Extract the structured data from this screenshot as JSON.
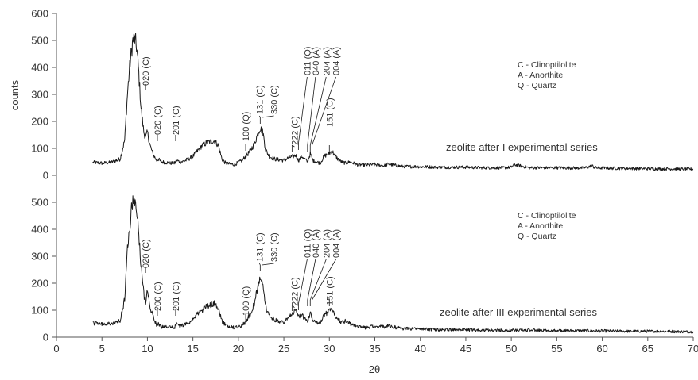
{
  "chart_data": {
    "type": "line",
    "xlabel": "2θ",
    "ylabel": "counts",
    "xlim": [
      0,
      70
    ],
    "xticks": [
      0,
      5,
      10,
      15,
      20,
      25,
      30,
      35,
      40,
      45,
      50,
      55,
      60,
      65,
      70
    ],
    "xtick_labels": [
      "0",
      "5",
      "10",
      "15",
      "20",
      "25",
      "30",
      "35",
      "40",
      "45",
      "50",
      "55",
      "60",
      "65",
      "70"
    ],
    "panels": [
      {
        "id": "top",
        "caption": "zeolite after I experimental series",
        "ylim": [
          0,
          600
        ],
        "yticks": [
          0,
          100,
          200,
          300,
          400,
          500,
          600
        ],
        "ytick_labels": [
          "0",
          "100",
          "200",
          "300",
          "400",
          "500",
          "600"
        ],
        "legend": [
          "C - Clinoptilolite",
          "A - Anorthite",
          "Q - Quartz"
        ],
        "series": [
          {
            "x": [
              4,
              5,
              6,
              7,
              7.5,
              7.8,
              8.1,
              8.4,
              8.6,
              8.8,
              9.0,
              9.3,
              9.6,
              9.8,
              10.0,
              10.3,
              10.6,
              11.0,
              11.2,
              11.5,
              12,
              12.5,
              13.0,
              13.2,
              13.6,
              14,
              14.5,
              15,
              15.5,
              16,
              16.5,
              17,
              17.4,
              17.8,
              18.2,
              18.6,
              19,
              19.6,
              20,
              20.4,
              20.8,
              21.3,
              21.8,
              22.2,
              22.4,
              22.7,
              23,
              23.4,
              24,
              24.5,
              25,
              25.5,
              26,
              26.3,
              26.6,
              27,
              27.3,
              27.6,
              27.9,
              28.2,
              28.6,
              29,
              29.4,
              29.9,
              30.3,
              30.8,
              31.3,
              31.8,
              32.3,
              33,
              34,
              35,
              36,
              36.5,
              37,
              38,
              40,
              42,
              45,
              47,
              49,
              50,
              50.3,
              52,
              55,
              58,
              58.9,
              59.2,
              60,
              62,
              64,
              66,
              68,
              70
            ],
            "y": [
              48,
              45,
              48,
              60,
              130,
              300,
              420,
              500,
              505,
              480,
              400,
              250,
              160,
              140,
              160,
              110,
              80,
              55,
              60,
              50,
              48,
              45,
              45,
              55,
              50,
              52,
              60,
              70,
              90,
              110,
              120,
              125,
              128,
              110,
              60,
              45,
              42,
              40,
              48,
              55,
              70,
              90,
              120,
              160,
              175,
              160,
              95,
              70,
              60,
              58,
              55,
              65,
              70,
              75,
              55,
              70,
              60,
              50,
              80,
              55,
              50,
              45,
              70,
              80,
              90,
              65,
              50,
              45,
              50,
              40,
              38,
              40,
              35,
              42,
              38,
              33,
              32,
              30,
              30,
              28,
              28,
              30,
              40,
              28,
              28,
              27,
              35,
              28,
              27,
              26,
              25,
              24,
              24,
              23
            ]
          }
        ],
        "peak_labels": [
          {
            "x": 9.8,
            "label": "020 (C)"
          },
          {
            "x": 11.1,
            "label": "020 (C)"
          },
          {
            "x": 13.1,
            "label": "201 (C)"
          },
          {
            "x": 20.8,
            "label": "100 (Q)"
          },
          {
            "x": 22.4,
            "label": "131 (C)"
          },
          {
            "x": 22.6,
            "label": "330 (C)"
          },
          {
            "x": 25.9,
            "label": "222 (C)"
          },
          {
            "x": 26.6,
            "label": "011 (Q)"
          },
          {
            "x": 27.6,
            "label": "040 (A)"
          },
          {
            "x": 27.9,
            "label": "204 (A)"
          },
          {
            "x": 28.1,
            "label": "004 (A)"
          },
          {
            "x": 30.0,
            "label": "151 (C)"
          }
        ]
      },
      {
        "id": "bottom",
        "caption": "zeolite after III experimental series",
        "ylim": [
          0,
          500
        ],
        "yticks": [
          0,
          100,
          200,
          300,
          400,
          500
        ],
        "ytick_labels": [
          "0",
          "100",
          "200",
          "300",
          "400",
          "500"
        ],
        "legend": [
          "C - Clinoptilolite",
          "A - Anorthite",
          "Q - Quartz"
        ],
        "series": [
          {
            "x": [
              4,
              5,
              6,
              7,
              7.5,
              7.8,
              8.1,
              8.4,
              8.6,
              8.8,
              9.0,
              9.3,
              9.6,
              9.8,
              10.0,
              10.3,
              10.6,
              11.0,
              11.2,
              11.5,
              12,
              12.5,
              13.0,
              13.2,
              13.6,
              14,
              14.5,
              15,
              15.5,
              16,
              16.5,
              17,
              17.4,
              17.8,
              18.2,
              18.6,
              19,
              19.6,
              20,
              20.4,
              20.8,
              21.3,
              21.8,
              22.2,
              22.4,
              22.7,
              23,
              23.4,
              24,
              24.5,
              25,
              25.5,
              26,
              26.3,
              26.6,
              27,
              27.3,
              27.6,
              27.9,
              28.2,
              28.6,
              29,
              29.4,
              29.9,
              30.3,
              30.8,
              31.3,
              31.8,
              32.3,
              33,
              34,
              35,
              36,
              36.5,
              37,
              38,
              40,
              42,
              45,
              47,
              49,
              50,
              52,
              55,
              58,
              60,
              62,
              64,
              66,
              68,
              70
            ],
            "y": [
              52,
              48,
              50,
              62,
              140,
              320,
              430,
              505,
              510,
              480,
              400,
              260,
              160,
              130,
              180,
              110,
              80,
              45,
              48,
              38,
              38,
              36,
              36,
              50,
              40,
              45,
              55,
              65,
              85,
              100,
              115,
              120,
              125,
              105,
              60,
              45,
              40,
              35,
              38,
              45,
              55,
              85,
              130,
              200,
              215,
              190,
              110,
              80,
              65,
              55,
              55,
              70,
              90,
              100,
              75,
              80,
              70,
              55,
              90,
              60,
              55,
              50,
              80,
              95,
              100,
              70,
              55,
              60,
              50,
              40,
              35,
              42,
              38,
              45,
              38,
              32,
              30,
              28,
              28,
              26,
              25,
              25,
              26,
              24,
              24,
              23,
              22,
              22,
              22,
              21,
              20
            ]
          }
        ],
        "peak_labels": [
          {
            "x": 9.8,
            "label": "020 (C)"
          },
          {
            "x": 11.1,
            "label": "200 (C)"
          },
          {
            "x": 13.1,
            "label": "201 (C)"
          },
          {
            "x": 20.8,
            "label": "100 (Q)"
          },
          {
            "x": 22.4,
            "label": "131 (C)"
          },
          {
            "x": 22.6,
            "label": "330 (C)"
          },
          {
            "x": 25.9,
            "label": "222 (C)"
          },
          {
            "x": 26.6,
            "label": "011 (Q)"
          },
          {
            "x": 27.6,
            "label": "040 (A)"
          },
          {
            "x": 27.9,
            "label": "204 (A)"
          },
          {
            "x": 28.1,
            "label": "004 (A)"
          },
          {
            "x": 30.0,
            "label": "151 (C)"
          }
        ]
      }
    ]
  },
  "colors": {
    "line": "#1a1a1a",
    "axis": "#555555",
    "text": "#333333"
  }
}
